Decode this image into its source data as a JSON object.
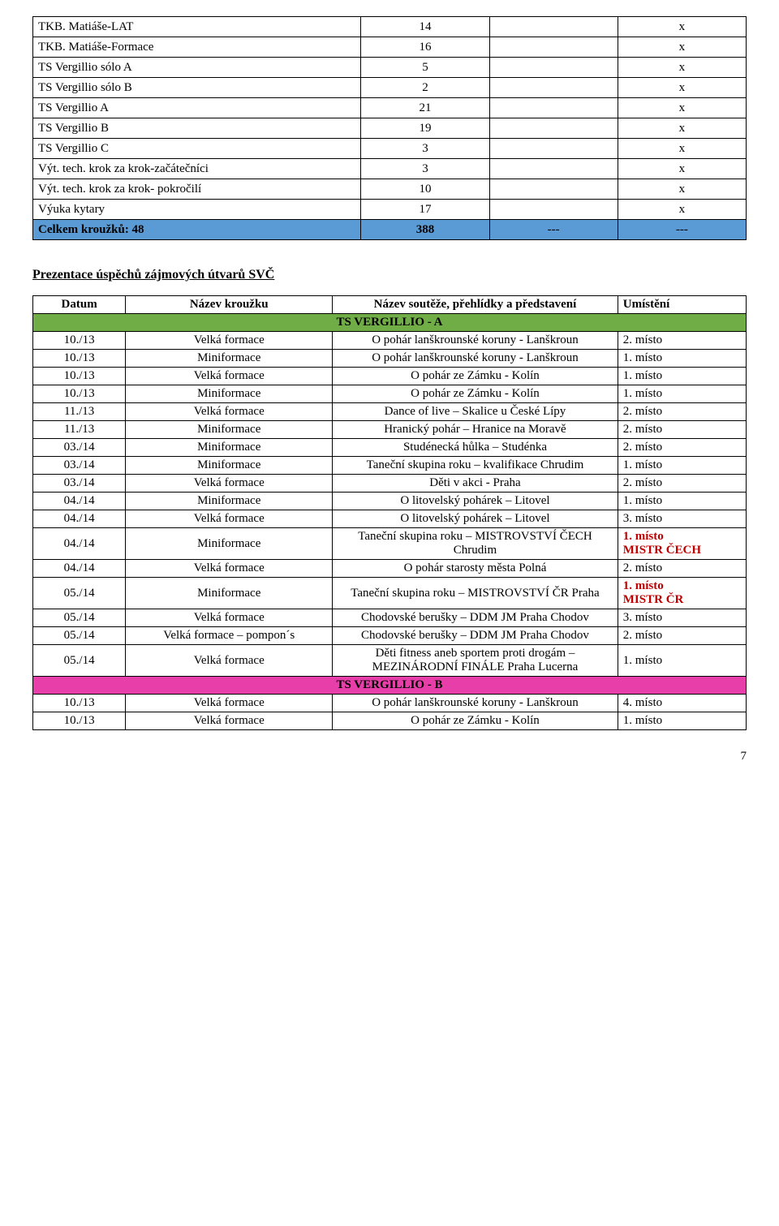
{
  "top_table": {
    "rows": [
      {
        "name": "TKB. Matiáše-LAT",
        "count": "14",
        "c3": "",
        "c4": "x"
      },
      {
        "name": "TKB. Matiáše-Formace",
        "count": "16",
        "c3": "",
        "c4": "x"
      },
      {
        "name": "TS Vergillio sólo A",
        "count": "5",
        "c3": "",
        "c4": "x"
      },
      {
        "name": "TS Vergillio sólo B",
        "count": "2",
        "c3": "",
        "c4": "x"
      },
      {
        "name": "TS Vergillio A",
        "count": "21",
        "c3": "",
        "c4": "x"
      },
      {
        "name": "TS Vergillio B",
        "count": "19",
        "c3": "",
        "c4": "x"
      },
      {
        "name": "TS Vergillio C",
        "count": "3",
        "c3": "",
        "c4": "x"
      },
      {
        "name": "Výt. tech. krok za krok-začátečníci",
        "count": "3",
        "c3": "",
        "c4": "x"
      },
      {
        "name": "Výt. tech. krok za krok- pokročilí",
        "count": "10",
        "c3": "",
        "c4": "x"
      },
      {
        "name": "Výuka kytary",
        "count": "17",
        "c3": "",
        "c4": "x"
      }
    ],
    "total": {
      "name": "Celkem kroužků: 48",
      "count": "388",
      "c3": "---",
      "c4": "---"
    },
    "total_row_bg": "#5b9bd5"
  },
  "section_title": "Prezentace úspěchů zájmových útvarů SVČ",
  "results": {
    "headers": {
      "date": "Datum",
      "group": "Název kroužku",
      "event": "Název soutěže, přehlídky a představení",
      "place": "Umístění"
    },
    "bandA": {
      "label": "TS VERGILLIO  - A",
      "bg": "#70ad47"
    },
    "bandB": {
      "label": "TS VERGILLIO  - B",
      "bg": "#e83ea9"
    },
    "rowsA": [
      {
        "date": "10./13",
        "group": "Velká formace",
        "event": "O pohár lanškrounské koruny - Lanškroun",
        "place": "2. místo"
      },
      {
        "date": "10./13",
        "group": "Miniformace",
        "event": "O pohár lanškrounské koruny - Lanškroun",
        "place": "1. místo"
      },
      {
        "date": "10./13",
        "group": "Velká formace",
        "event": "O pohár ze Zámku - Kolín",
        "place": "1. místo"
      },
      {
        "date": "10./13",
        "group": "Miniformace",
        "event": "O pohár ze Zámku - Kolín",
        "place": "1. místo"
      },
      {
        "date": "11./13",
        "group": "Velká formace",
        "event": "Dance of live – Skalice u České Lípy",
        "place": "2. místo"
      },
      {
        "date": "11./13",
        "group": "Miniformace",
        "event": "Hranický pohár – Hranice na Moravě",
        "place": "2. místo"
      },
      {
        "date": "03./14",
        "group": "Miniformace",
        "event": "Studénecká hůlka – Studénka",
        "place": "2. místo"
      },
      {
        "date": "03./14",
        "group": "Miniformace",
        "event": "Taneční skupina roku – kvalifikace Chrudim",
        "place": "1. místo"
      },
      {
        "date": "03./14",
        "group": "Velká formace",
        "event": "Děti v akci - Praha",
        "place": "2. místo"
      },
      {
        "date": "04./14",
        "group": "Miniformace",
        "event": "O litovelský pohárek – Litovel",
        "place": "1. místo"
      },
      {
        "date": "04./14",
        "group": "Velká formace",
        "event": "O litovelský pohárek – Litovel",
        "place": "3. místo"
      },
      {
        "date": "04./14",
        "group": "Miniformace",
        "event": "Taneční skupina roku – MISTROVSTVÍ ČECH Chrudim",
        "place_a": "1. místo",
        "place_b": "MISTR ČECH",
        "red": true
      },
      {
        "date": "04./14",
        "group": "Velká formace",
        "event": "O pohár starosty města Polná",
        "place": "2. místo"
      },
      {
        "date": "05./14",
        "group": "Miniformace",
        "event": "Taneční skupina roku – MISTROVSTVÍ ČR Praha",
        "place_a": "1. místo",
        "place_b": "MISTR ČR",
        "red": true
      },
      {
        "date": "05./14",
        "group": "Velká formace",
        "event": "Chodovské berušky – DDM JM Praha Chodov",
        "place": "3. místo"
      },
      {
        "date": "05./14",
        "group": "Velká formace – pompon´s",
        "event": "Chodovské berušky – DDM JM Praha Chodov",
        "place": "2. místo"
      },
      {
        "date": "05./14",
        "group": "Velká formace",
        "event": "Děti fitness aneb sportem proti drogám – MEZINÁRODNÍ FINÁLE Praha Lucerna",
        "place": "1. místo"
      }
    ],
    "rowsB": [
      {
        "date": "10./13",
        "group": "Velká formace",
        "event": "O pohár lanškrounské koruny - Lanškroun",
        "place": "4. místo"
      },
      {
        "date": "10./13",
        "group": "Velká formace",
        "event": "O pohár ze Zámku - Kolín",
        "place": "1. místo"
      }
    ]
  },
  "page_number": "7"
}
